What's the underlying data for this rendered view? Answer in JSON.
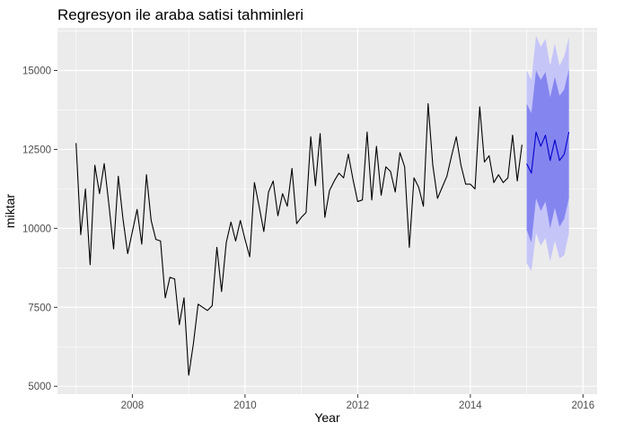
{
  "chart_data": {
    "type": "line",
    "title": "Regresyon ile araba satisi tahminleri",
    "xlabel": "Year",
    "ylabel": "miktar",
    "xlim": [
      2006.67,
      2016.25
    ],
    "ylim": [
      4750,
      16350
    ],
    "grid": true,
    "legend": "none",
    "x_ticks": [
      {
        "value": 2008,
        "label": "2008"
      },
      {
        "value": 2010,
        "label": "2010"
      },
      {
        "value": 2012,
        "label": "2012"
      },
      {
        "value": 2014,
        "label": "2014"
      },
      {
        "value": 2016,
        "label": "2016"
      }
    ],
    "y_ticks": [
      {
        "value": 5000,
        "label": "5000"
      },
      {
        "value": 7500,
        "label": "7500"
      },
      {
        "value": 10000,
        "label": "10000"
      },
      {
        "value": 12500,
        "label": "12500"
      },
      {
        "value": 15000,
        "label": "15000"
      }
    ],
    "series": [
      {
        "role": "actual",
        "color": "#000000",
        "start": "2007-01",
        "frequency": "monthly",
        "values": [
          12700,
          9800,
          11250,
          8850,
          12000,
          11100,
          12050,
          10750,
          9350,
          11650,
          10300,
          9200,
          9900,
          10600,
          9500,
          11700,
          10250,
          9650,
          9600,
          7800,
          8450,
          8400,
          6950,
          7800,
          5350,
          6350,
          7600,
          7500,
          7400,
          7550,
          9400,
          8000,
          9550,
          10200,
          9600,
          10250,
          9650,
          9100,
          11450,
          10700,
          9900,
          11150,
          11500,
          10400,
          11100,
          10700,
          11900,
          10150,
          10350,
          10500,
          12900,
          11350,
          13000,
          10350,
          11200,
          11500,
          11750,
          11600,
          12350,
          11550,
          10850,
          10900,
          13050,
          10900,
          12600,
          11050,
          11950,
          11800,
          11150,
          12400,
          11950,
          9400,
          11600,
          11300,
          10700,
          13950,
          12000,
          10950,
          11300,
          11650,
          12300,
          12900,
          12000,
          11400,
          11400,
          11250,
          13850,
          12100,
          12300,
          11450,
          11700,
          11450,
          11600,
          12950,
          11500,
          12650
        ]
      },
      {
        "role": "forecast",
        "color": "#0000cc",
        "start": "2015-01",
        "frequency": "monthly",
        "values": [
          12050,
          11750,
          13050,
          12600,
          12950,
          12150,
          12800,
          12150,
          12350,
          13050
        ],
        "interval_80": {
          "color": "#8585f0",
          "lower": [
            9950,
            9550,
            10950,
            10550,
            10850,
            10000,
            10650,
            10050,
            10300,
            10950
          ],
          "upper": [
            13950,
            13650,
            15000,
            14700,
            14950,
            14150,
            14800,
            14200,
            14400,
            15050
          ]
        },
        "interval_95": {
          "color": "#c5c5f8",
          "lower": [
            8900,
            8650,
            9850,
            9450,
            9700,
            8950,
            9600,
            9050,
            9150,
            9850
          ],
          "upper": [
            15000,
            14700,
            16100,
            15750,
            16000,
            15150,
            15850,
            15150,
            15450,
            16050
          ]
        }
      }
    ]
  }
}
